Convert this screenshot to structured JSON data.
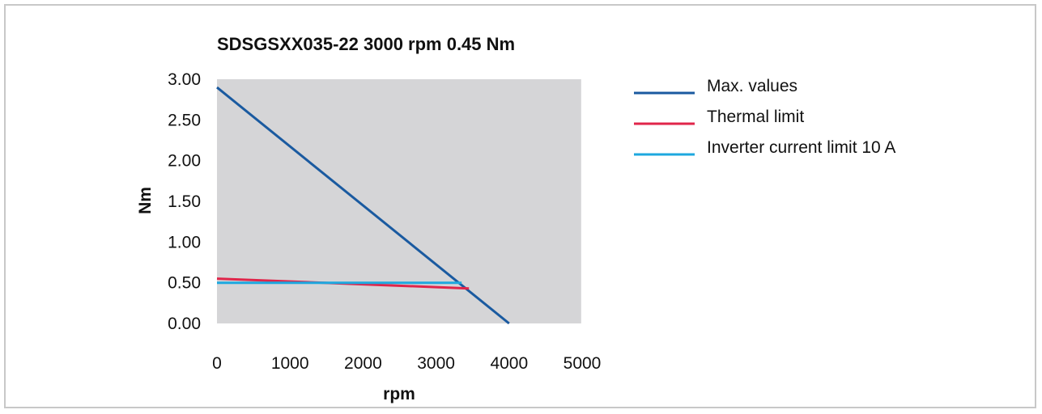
{
  "chart_data": {
    "type": "line",
    "title": "SDSGSXX035-22 3000 rpm 0.45 Nm",
    "xlabel": "rpm",
    "ylabel": "Nm",
    "xlim": [
      0,
      5000
    ],
    "ylim": [
      0,
      3
    ],
    "x_ticks": [
      "0",
      "1000",
      "2000",
      "3000",
      "4000",
      "5000"
    ],
    "y_ticks": [
      "0.00",
      "0.50",
      "1.00",
      "1.50",
      "2.00",
      "2.50",
      "3.00"
    ],
    "grid": false,
    "plot_background": "#d5d5d7",
    "legend_position": "right",
    "series": [
      {
        "name": "Max. values",
        "color": "#1a5aa0",
        "points": [
          [
            0,
            2.9
          ],
          [
            4000,
            0.0
          ]
        ]
      },
      {
        "name": "Thermal limit",
        "color": "#e0254a",
        "points": [
          [
            0,
            0.55
          ],
          [
            3450,
            0.43
          ]
        ]
      },
      {
        "name": "Inverter current limit 10 A",
        "color": "#1ea8df",
        "points": [
          [
            0,
            0.5
          ],
          [
            3350,
            0.5
          ]
        ]
      }
    ]
  }
}
